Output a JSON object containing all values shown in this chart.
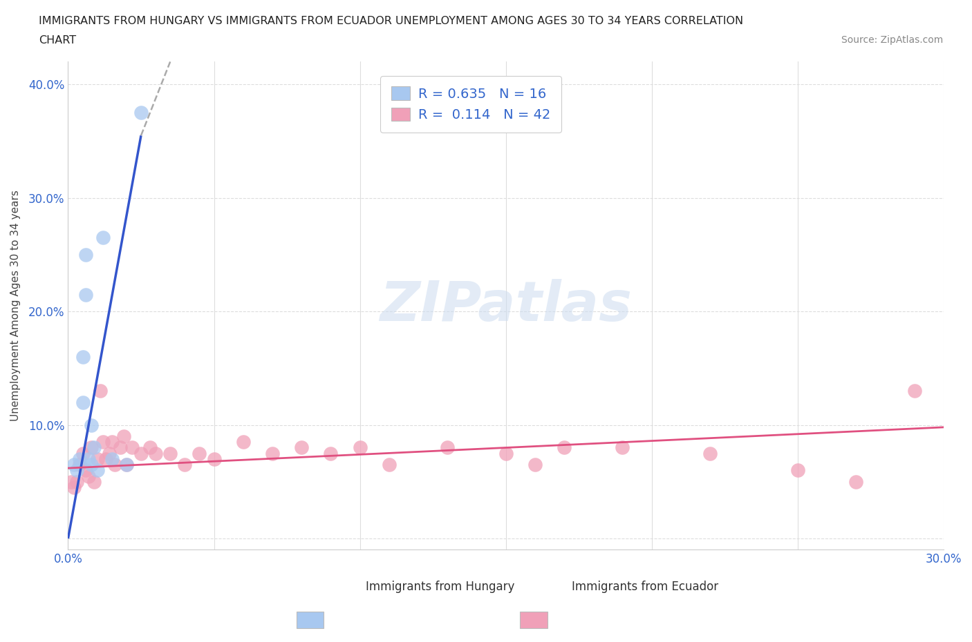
{
  "title_line1": "IMMIGRANTS FROM HUNGARY VS IMMIGRANTS FROM ECUADOR UNEMPLOYMENT AMONG AGES 30 TO 34 YEARS CORRELATION",
  "title_line2": "CHART",
  "source": "Source: ZipAtlas.com",
  "ylabel": "Unemployment Among Ages 30 to 34 years",
  "xlim": [
    0.0,
    0.3
  ],
  "ylim": [
    -0.01,
    0.42
  ],
  "xticks": [
    0.0,
    0.05,
    0.1,
    0.15,
    0.2,
    0.25,
    0.3
  ],
  "xticklabels": [
    "0.0%",
    "",
    "",
    "",
    "",
    "",
    "30.0%"
  ],
  "yticks": [
    0.0,
    0.1,
    0.2,
    0.3,
    0.4
  ],
  "yticklabels": [
    "",
    "10.0%",
    "20.0%",
    "30.0%",
    "40.0%"
  ],
  "hungary_color": "#a8c8f0",
  "ecuador_color": "#f0a0b8",
  "hungary_line_color": "#3355cc",
  "ecuador_line_color": "#e05080",
  "hungary_R": 0.635,
  "hungary_N": 16,
  "ecuador_R": 0.114,
  "ecuador_N": 42,
  "legend_text_color": "#3366cc",
  "watermark": "ZIPatlas",
  "hungary_scatter_x": [
    0.002,
    0.003,
    0.004,
    0.005,
    0.005,
    0.006,
    0.006,
    0.007,
    0.008,
    0.008,
    0.009,
    0.01,
    0.012,
    0.015,
    0.02,
    0.025
  ],
  "hungary_scatter_y": [
    0.065,
    0.06,
    0.07,
    0.16,
    0.12,
    0.25,
    0.215,
    0.07,
    0.065,
    0.1,
    0.08,
    0.06,
    0.265,
    0.07,
    0.065,
    0.375
  ],
  "ecuador_scatter_x": [
    0.001,
    0.002,
    0.003,
    0.004,
    0.005,
    0.006,
    0.007,
    0.008,
    0.009,
    0.01,
    0.011,
    0.012,
    0.013,
    0.014,
    0.015,
    0.016,
    0.018,
    0.019,
    0.02,
    0.022,
    0.025,
    0.028,
    0.03,
    0.035,
    0.04,
    0.045,
    0.05,
    0.06,
    0.07,
    0.08,
    0.09,
    0.1,
    0.11,
    0.13,
    0.15,
    0.16,
    0.17,
    0.19,
    0.22,
    0.25,
    0.27,
    0.29
  ],
  "ecuador_scatter_y": [
    0.05,
    0.045,
    0.05,
    0.065,
    0.075,
    0.06,
    0.055,
    0.08,
    0.05,
    0.07,
    0.13,
    0.085,
    0.07,
    0.075,
    0.085,
    0.065,
    0.08,
    0.09,
    0.065,
    0.08,
    0.075,
    0.08,
    0.075,
    0.075,
    0.065,
    0.075,
    0.07,
    0.085,
    0.075,
    0.08,
    0.075,
    0.08,
    0.065,
    0.08,
    0.075,
    0.065,
    0.08,
    0.08,
    0.075,
    0.06,
    0.05,
    0.13
  ],
  "hungary_trend_x0": 0.0,
  "hungary_trend_y0": 0.0,
  "hungary_trend_x1": 0.025,
  "hungary_trend_y1": 0.355,
  "hungary_trend_dash_x1": 0.035,
  "hungary_trend_dash_y1": 0.42,
  "ecuador_trend_x0": 0.0,
  "ecuador_trend_y0": 0.062,
  "ecuador_trend_x1": 0.3,
  "ecuador_trend_y1": 0.098
}
